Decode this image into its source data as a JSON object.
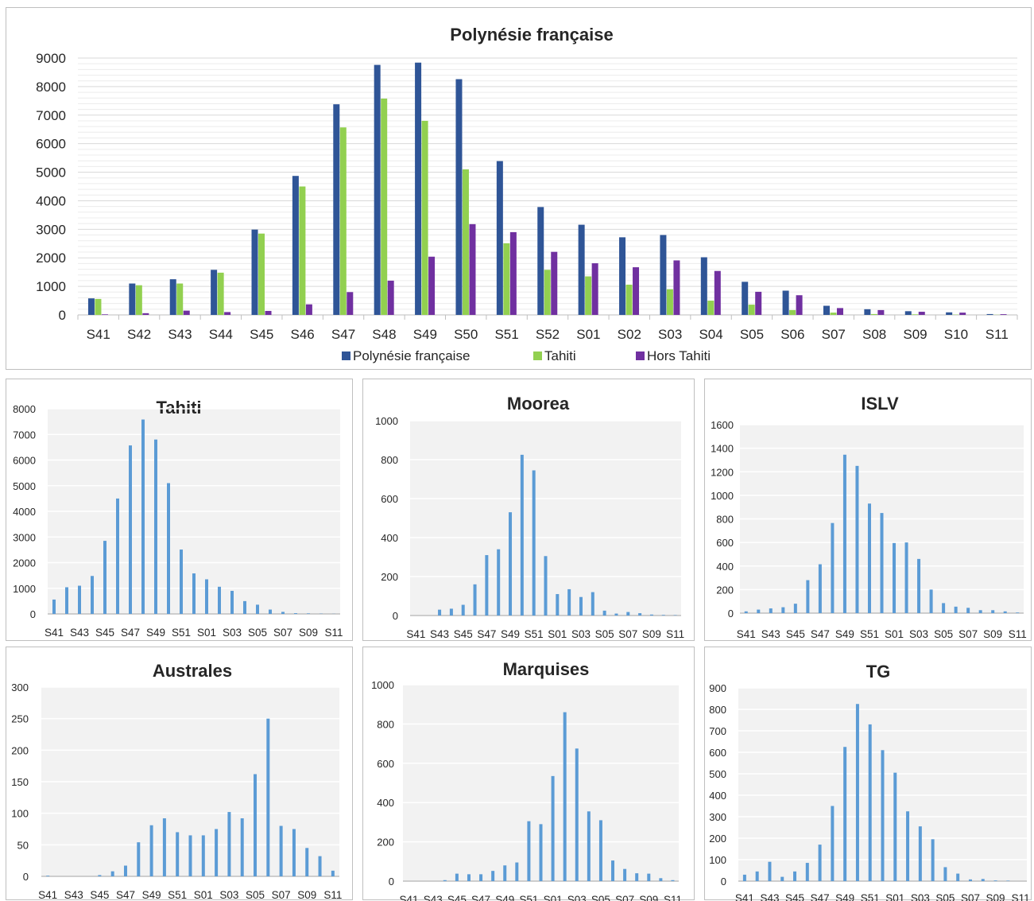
{
  "chart_data": [
    {
      "type": "bar",
      "title": "Polynésie française",
      "categories": [
        "S41",
        "S42",
        "S43",
        "S44",
        "S45",
        "S46",
        "S47",
        "S48",
        "S49",
        "S50",
        "S51",
        "S52",
        "S01",
        "S02",
        "S03",
        "S04",
        "S05",
        "S06",
        "S07",
        "S08",
        "S09",
        "S10",
        "S11"
      ],
      "ylim": [
        0,
        9000
      ],
      "yticks": [
        0,
        1000,
        2000,
        3000,
        4000,
        5000,
        6000,
        7000,
        8000,
        9000
      ],
      "grid": true,
      "legend_position": "bottom",
      "series": [
        {
          "name": "Polynésie française",
          "color": "#2f5597",
          "values": [
            580,
            1100,
            1250,
            1580,
            2990,
            4870,
            7380,
            8760,
            8840,
            8260,
            5390,
            3780,
            3160,
            2720,
            2800,
            2020,
            1160,
            850,
            320,
            200,
            130,
            90,
            30
          ]
        },
        {
          "name": "Tahiti",
          "color": "#92d050",
          "values": [
            560,
            1040,
            1100,
            1480,
            2850,
            4500,
            6570,
            7580,
            6800,
            5100,
            2510,
            1580,
            1350,
            1060,
            900,
            500,
            360,
            170,
            80,
            30,
            20,
            10,
            5
          ]
        },
        {
          "name": "Hors Tahiti",
          "color": "#7030a0",
          "values": [
            20,
            60,
            150,
            100,
            140,
            370,
            800,
            1200,
            2040,
            3180,
            2900,
            2210,
            1810,
            1670,
            1910,
            1540,
            810,
            690,
            240,
            170,
            110,
            80,
            25
          ]
        }
      ]
    },
    {
      "type": "bar",
      "title": "Tahiti",
      "color": "#5b9bd5",
      "categories": [
        "S41",
        "S42",
        "S43",
        "S44",
        "S45",
        "S46",
        "S47",
        "S48",
        "S49",
        "S50",
        "S51",
        "S52",
        "S01",
        "S02",
        "S03",
        "S04",
        "S05",
        "S06",
        "S07",
        "S08",
        "S09",
        "S10",
        "S11"
      ],
      "tick_labels": [
        "S41",
        "S43",
        "S45",
        "S47",
        "S49",
        "S51",
        "S01",
        "S03",
        "S05",
        "S07",
        "S09",
        "S11"
      ],
      "values": [
        560,
        1040,
        1100,
        1480,
        2850,
        4500,
        6570,
        7580,
        6800,
        5100,
        2510,
        1580,
        1350,
        1060,
        900,
        500,
        360,
        170,
        80,
        30,
        20,
        10,
        5
      ],
      "ylim": [
        0,
        8000
      ],
      "yticks": [
        0,
        1000,
        2000,
        3000,
        4000,
        5000,
        6000,
        7000,
        8000
      ],
      "grid": true
    },
    {
      "type": "bar",
      "title": "Moorea",
      "color": "#5b9bd5",
      "categories": [
        "S41",
        "S42",
        "S43",
        "S44",
        "S45",
        "S46",
        "S47",
        "S48",
        "S49",
        "S50",
        "S51",
        "S52",
        "S01",
        "S02",
        "S03",
        "S04",
        "S05",
        "S06",
        "S07",
        "S08",
        "S09",
        "S10",
        "S11"
      ],
      "tick_labels": [
        "S41",
        "S43",
        "S45",
        "S47",
        "S49",
        "S51",
        "S01",
        "S03",
        "S05",
        "S07",
        "S09",
        "S11"
      ],
      "values": [
        0,
        0,
        30,
        35,
        55,
        160,
        310,
        340,
        530,
        825,
        745,
        305,
        110,
        135,
        95,
        120,
        25,
        10,
        18,
        12,
        5,
        3,
        2
      ],
      "ylim": [
        0,
        1000
      ],
      "yticks": [
        0,
        200,
        400,
        600,
        800,
        1000
      ],
      "grid": true
    },
    {
      "type": "bar",
      "title": "ISLV",
      "color": "#5b9bd5",
      "categories": [
        "S41",
        "S42",
        "S43",
        "S44",
        "S45",
        "S46",
        "S47",
        "S48",
        "S49",
        "S50",
        "S51",
        "S52",
        "S01",
        "S02",
        "S03",
        "S04",
        "S05",
        "S06",
        "S07",
        "S08",
        "S09",
        "S10",
        "S11"
      ],
      "tick_labels": [
        "S41",
        "S43",
        "S45",
        "S47",
        "S49",
        "S51",
        "S01",
        "S03",
        "S05",
        "S07",
        "S09",
        "S11"
      ],
      "values": [
        15,
        30,
        40,
        50,
        80,
        280,
        415,
        765,
        1345,
        1250,
        930,
        850,
        595,
        600,
        460,
        200,
        85,
        55,
        45,
        25,
        25,
        15,
        5
      ],
      "ylim": [
        0,
        1600
      ],
      "yticks": [
        0,
        200,
        400,
        600,
        800,
        1000,
        1200,
        1400,
        1600
      ],
      "grid": true
    },
    {
      "type": "bar",
      "title": "Australes",
      "color": "#5b9bd5",
      "categories": [
        "S41",
        "S42",
        "S43",
        "S44",
        "S45",
        "S46",
        "S47",
        "S48",
        "S49",
        "S50",
        "S51",
        "S52",
        "S01",
        "S02",
        "S03",
        "S04",
        "S05",
        "S06",
        "S07",
        "S08",
        "S09",
        "S10",
        "S11"
      ],
      "tick_labels": [
        "S41",
        "S43",
        "S45",
        "S47",
        "S49",
        "S51",
        "S01",
        "S03",
        "S05",
        "S07",
        "S09",
        "S11"
      ],
      "values": [
        1,
        0,
        0,
        0,
        2,
        8,
        17,
        54,
        81,
        92,
        70,
        65,
        65,
        75,
        102,
        92,
        162,
        250,
        80,
        75,
        45,
        32,
        9
      ],
      "ylim": [
        0,
        300
      ],
      "yticks": [
        0,
        50,
        100,
        150,
        200,
        250,
        300
      ],
      "grid": true
    },
    {
      "type": "bar",
      "title": "Marquises",
      "color": "#5b9bd5",
      "categories": [
        "S41",
        "S42",
        "S43",
        "S44",
        "S45",
        "S46",
        "S47",
        "S48",
        "S49",
        "S50",
        "S51",
        "S52",
        "S01",
        "S02",
        "S03",
        "S04",
        "S05",
        "S06",
        "S07",
        "S08",
        "S09",
        "S10",
        "S11"
      ],
      "tick_labels": [
        "S41",
        "S43",
        "S45",
        "S47",
        "S49",
        "S51",
        "S01",
        "S03",
        "S05",
        "S07",
        "S09",
        "S11"
      ],
      "values": [
        0,
        0,
        0,
        5,
        38,
        35,
        35,
        52,
        80,
        95,
        305,
        290,
        535,
        860,
        675,
        355,
        310,
        105,
        62,
        40,
        38,
        15,
        5
      ],
      "ylim": [
        0,
        1000
      ],
      "yticks": [
        0,
        200,
        400,
        600,
        800,
        1000
      ],
      "grid": true
    },
    {
      "type": "bar",
      "title": "TG",
      "color": "#5b9bd5",
      "categories": [
        "S41",
        "S42",
        "S43",
        "S44",
        "S45",
        "S46",
        "S47",
        "S48",
        "S49",
        "S50",
        "S51",
        "S52",
        "S01",
        "S02",
        "S03",
        "S04",
        "S05",
        "S06",
        "S07",
        "S08",
        "S09",
        "S10",
        "S11"
      ],
      "tick_labels": [
        "S41",
        "S43",
        "S45",
        "S47",
        "S49",
        "S51",
        "S01",
        "S03",
        "S05",
        "S07",
        "S09",
        "S11"
      ],
      "values": [
        30,
        45,
        90,
        20,
        45,
        85,
        170,
        350,
        625,
        825,
        730,
        610,
        505,
        325,
        255,
        195,
        65,
        35,
        8,
        10,
        3,
        2,
        0
      ],
      "ylim": [
        0,
        900
      ],
      "yticks": [
        0,
        100,
        200,
        300,
        400,
        500,
        600,
        700,
        800,
        900
      ],
      "grid": true
    }
  ]
}
